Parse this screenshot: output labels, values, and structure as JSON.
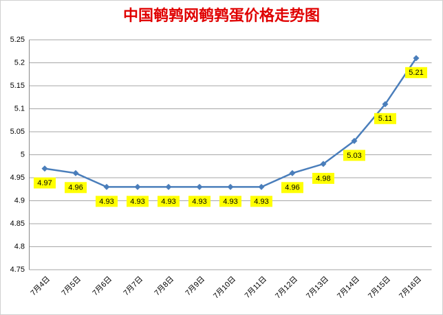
{
  "chart_data": {
    "type": "line",
    "title": "中国鹌鹑网鹌鹑蛋价格走势图",
    "categories": [
      "7月4日",
      "7月5日",
      "7月6日",
      "7月7日",
      "7月8日",
      "7月9日",
      "7月10日",
      "7月11日",
      "7月12日",
      "7月13日",
      "7月14日",
      "7月15日",
      "7月16日"
    ],
    "series": [
      {
        "name": "鹌鹑蛋价格",
        "color": "#4a7ebb",
        "values": [
          4.97,
          4.96,
          4.93,
          4.93,
          4.93,
          4.93,
          4.93,
          4.93,
          4.96,
          4.98,
          5.03,
          5.11,
          5.21
        ]
      }
    ],
    "ylim": [
      4.75,
      5.25
    ],
    "yticks": [
      4.75,
      4.8,
      4.85,
      4.9,
      4.95,
      5,
      5.05,
      5.1,
      5.15,
      5.2,
      5.25
    ],
    "grid": true,
    "label_color": "#ffff00"
  }
}
